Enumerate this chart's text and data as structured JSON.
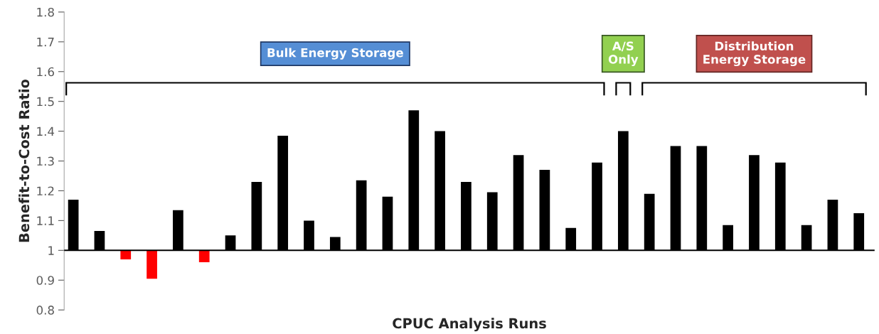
{
  "chart_data": {
    "type": "bar",
    "xlabel": "CPUC Analysis Runs",
    "ylabel": "Benefit-to-Cost Ratio",
    "categories": [
      null,
      null,
      null,
      null,
      null,
      null,
      null,
      null,
      null,
      null,
      null,
      null,
      null,
      null,
      null,
      null,
      null,
      null,
      null,
      null,
      null,
      null,
      null,
      null,
      null,
      null,
      null,
      null,
      null,
      null,
      null
    ],
    "base": [
      1,
      1,
      1,
      1,
      1,
      1,
      1,
      1,
      1,
      1,
      1,
      1,
      1,
      1,
      1,
      1,
      1,
      1,
      1,
      1,
      1,
      1,
      1,
      1,
      1,
      1,
      1,
      1,
      1,
      1,
      1
    ],
    "values": [
      0.17,
      0.065,
      -0.03,
      -0.095,
      0.135,
      -0.04,
      0.05,
      0.23,
      0.385,
      0.1,
      0.045,
      0.235,
      0.18,
      0.47,
      0.4,
      0.23,
      0.195,
      0.32,
      0.27,
      0.075,
      0.295,
      0.4,
      0.19,
      0.35,
      0.35,
      0.085,
      0.32,
      0.295,
      0.085,
      0.17,
      0.125
    ],
    "colors": [
      "#000000",
      "#000000",
      "#ff0000",
      "#ff0000",
      "#000000",
      "#ff0000",
      "#000000",
      "#000000",
      "#000000",
      "#000000",
      "#000000",
      "#000000",
      "#000000",
      "#000000",
      "#000000",
      "#000000",
      "#000000",
      "#000000",
      "#000000",
      "#000000",
      "#000000",
      "#000000",
      "#000000",
      "#000000",
      "#000000",
      "#000000",
      "#000000",
      "#000000",
      "#000000",
      "#000000",
      "#000000"
    ],
    "ylim": [
      0.8,
      1.8
    ],
    "yticks": [
      0.8,
      0.9,
      1,
      1.1,
      1.2,
      1.3,
      1.4,
      1.5,
      1.6,
      1.7,
      1.8
    ],
    "ref_lines": [
      {
        "axis": "y",
        "value": 1,
        "color": "#000000"
      }
    ],
    "annotations": [
      "Bulk Energy Storage",
      "A/S\nOnly",
      "Distribution\nEnergy Storage"
    ],
    "tick_labels": "y",
    "grid": false,
    "legend": false
  }
}
